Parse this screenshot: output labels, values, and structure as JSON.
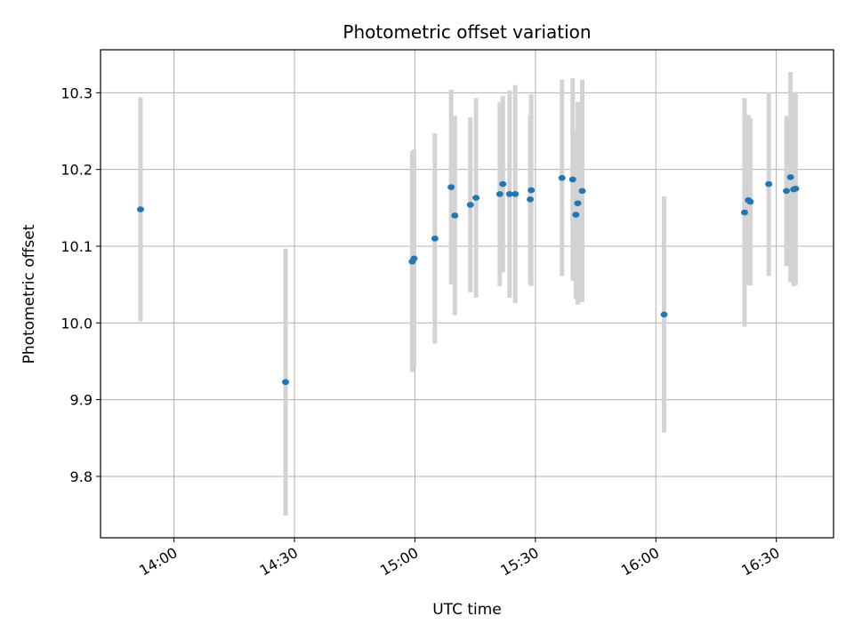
{
  "chart_data": {
    "type": "scatter",
    "title": "Photometric offset variation",
    "xlabel": "UTC time",
    "ylabel": "Photometric offset",
    "grid": true,
    "legend": "none",
    "x_ticks": [
      "14:00",
      "14:30",
      "15:00",
      "15:30",
      "16:00",
      "16:30"
    ],
    "x_tick_minutes": [
      840,
      870,
      900,
      930,
      960,
      990
    ],
    "y_ticks": [
      "9.8",
      "9.9",
      "10.0",
      "10.1",
      "10.2",
      "10.3"
    ],
    "y_tick_values": [
      9.8,
      9.9,
      10.0,
      10.1,
      10.2,
      10.3
    ],
    "xlim": [
      "13:41:42",
      "16:44:15"
    ],
    "ylim": [
      9.72,
      10.356
    ],
    "marker_color": "#1f77b4",
    "errorbar_color": "#d3d3d3",
    "points": [
      {
        "x": "13:51:40",
        "y": 10.148,
        "err": 0.146
      },
      {
        "x": "14:27:47",
        "y": 9.923,
        "err": 0.174
      },
      {
        "x": "14:59:19",
        "y": 10.08,
        "err": 0.144
      },
      {
        "x": "14:59:47",
        "y": 10.084,
        "err": 0.142
      },
      {
        "x": "15:04:58",
        "y": 10.11,
        "err": 0.137
      },
      {
        "x": "15:09:01",
        "y": 10.177,
        "err": 0.127
      },
      {
        "x": "15:09:56",
        "y": 10.14,
        "err": 0.13
      },
      {
        "x": "15:13:48",
        "y": 10.154,
        "err": 0.114
      },
      {
        "x": "15:15:13",
        "y": 10.163,
        "err": 0.13
      },
      {
        "x": "15:21:08",
        "y": 10.168,
        "err": 0.12
      },
      {
        "x": "15:21:54",
        "y": 10.181,
        "err": 0.115
      },
      {
        "x": "15:23:34",
        "y": 10.168,
        "err": 0.135
      },
      {
        "x": "15:24:59",
        "y": 10.168,
        "err": 0.142
      },
      {
        "x": "15:28:43",
        "y": 10.161,
        "err": 0.11
      },
      {
        "x": "15:28:58",
        "y": 10.173,
        "err": 0.125
      },
      {
        "x": "15:36:37",
        "y": 10.189,
        "err": 0.128
      },
      {
        "x": "15:39:17",
        "y": 10.187,
        "err": 0.132
      },
      {
        "x": "15:40:05",
        "y": 10.141,
        "err": 0.11
      },
      {
        "x": "15:40:33",
        "y": 10.156,
        "err": 0.132
      },
      {
        "x": "15:41:40",
        "y": 10.172,
        "err": 0.145
      },
      {
        "x": "16:02:03",
        "y": 10.011,
        "err": 0.154
      },
      {
        "x": "16:22:05",
        "y": 10.144,
        "err": 0.149
      },
      {
        "x": "16:23:03",
        "y": 10.16,
        "err": 0.111
      },
      {
        "x": "16:23:31",
        "y": 10.158,
        "err": 0.109
      },
      {
        "x": "16:28:07",
        "y": 10.181,
        "err": 0.12
      },
      {
        "x": "16:32:31",
        "y": 10.172,
        "err": 0.098
      },
      {
        "x": "16:33:32",
        "y": 10.19,
        "err": 0.137
      },
      {
        "x": "16:34:20",
        "y": 10.174,
        "err": 0.126
      },
      {
        "x": "16:34:48",
        "y": 10.175,
        "err": 0.126
      }
    ]
  }
}
